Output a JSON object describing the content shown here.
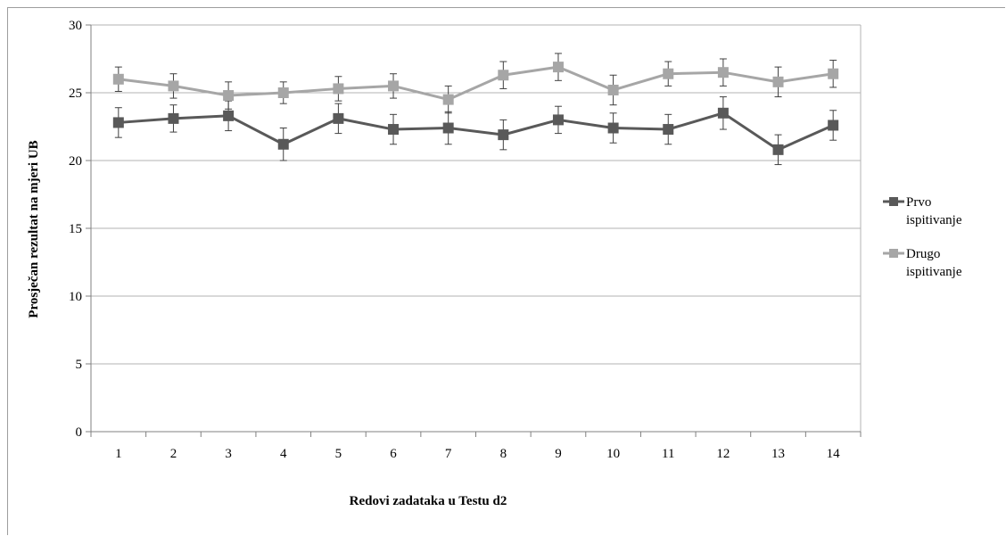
{
  "chart_data": {
    "type": "line",
    "xlabel": "Redovi zadataka  u Testu d2",
    "ylabel": "Prosječan rezultat na mjeri UB",
    "ylim": [
      0,
      30
    ],
    "yticks": [
      0,
      5,
      10,
      15,
      20,
      25,
      30
    ],
    "categories": [
      "1",
      "2",
      "3",
      "4",
      "5",
      "6",
      "7",
      "8",
      "9",
      "10",
      "11",
      "12",
      "13",
      "14"
    ],
    "grid": "horizontal",
    "legend_position": "right",
    "series": [
      {
        "name_lines": [
          "Prvo",
          "ispitivanje"
        ],
        "color": "#595959",
        "values": [
          22.8,
          23.1,
          23.3,
          21.2,
          23.1,
          22.3,
          22.4,
          21.9,
          23.0,
          22.4,
          22.3,
          23.5,
          20.8,
          22.6
        ],
        "error": [
          1.1,
          1.0,
          1.1,
          1.2,
          1.1,
          1.1,
          1.2,
          1.1,
          1.0,
          1.1,
          1.1,
          1.2,
          1.1,
          1.1
        ]
      },
      {
        "name_lines": [
          "Drugo",
          "ispitivanje"
        ],
        "color": "#a6a6a6",
        "values": [
          26.0,
          25.5,
          24.8,
          25.0,
          25.3,
          25.5,
          24.5,
          26.3,
          26.9,
          25.2,
          26.4,
          26.5,
          25.8,
          26.4
        ],
        "error": [
          0.9,
          0.9,
          1.0,
          0.8,
          0.9,
          0.9,
          1.0,
          1.0,
          1.0,
          1.1,
          0.9,
          1.0,
          1.1,
          1.0
        ]
      }
    ]
  }
}
